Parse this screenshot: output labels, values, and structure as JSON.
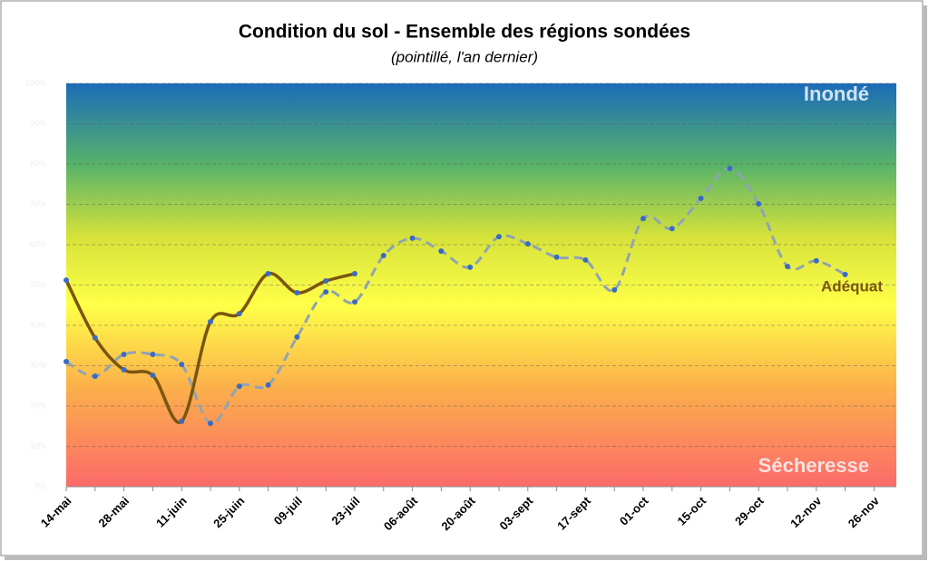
{
  "chart_data": {
    "type": "line",
    "title": "Condition du sol - Ensemble des régions sondées",
    "subtitle": "(pointillé, l'an dernier)",
    "annotations": {
      "top": "Inondé",
      "bottom": "Sécheresse",
      "current": "Adéquat"
    },
    "categories": [
      "14-mai",
      null,
      "28-mai",
      null,
      "11-juin",
      null,
      "25-juin",
      null,
      "09-juil",
      null,
      "23-juil",
      null,
      "06-août",
      null,
      "20-août",
      null,
      "03-sept",
      null,
      "17-sept",
      null,
      "01-oct",
      null,
      "15-oct",
      null,
      "29-oct",
      null,
      "12-nov",
      null,
      "26-nov"
    ],
    "series": [
      {
        "name": "Adéquat",
        "color": "#7a5510",
        "dash": false,
        "values": [
          51.2,
          36.9,
          29.0,
          27.6,
          16.2,
          40.9,
          42.9,
          52.8,
          48.1,
          51.0,
          52.8,
          null,
          null,
          null,
          null,
          null,
          null,
          null,
          null,
          null,
          null,
          null,
          null,
          null,
          null,
          null,
          null,
          null,
          null
        ]
      },
      {
        "name": "l'an dernier",
        "color": "#8fa3b3",
        "dash": true,
        "values": [
          31.0,
          27.4,
          32.8,
          32.8,
          30.3,
          15.7,
          24.9,
          25.2,
          37.1,
          48.3,
          45.8,
          57.3,
          61.6,
          58.4,
          54.4,
          62.0,
          60.2,
          56.9,
          56.2,
          48.8,
          66.5,
          64.0,
          71.5,
          78.9,
          70.1,
          54.6,
          56.0,
          52.6,
          null
        ]
      }
    ],
    "marker_color": "#3a6bc4",
    "ylim": [
      0,
      100
    ],
    "yticks": [
      {
        "value": 0,
        "label": "0%"
      },
      {
        "value": 10,
        "label": "10%"
      },
      {
        "value": 20,
        "label": "20%"
      },
      {
        "value": 30,
        "label": "30%"
      },
      {
        "value": 40,
        "label": "40%"
      },
      {
        "value": 50,
        "label": "50%"
      },
      {
        "value": 60,
        "label": "60%"
      },
      {
        "value": 70,
        "label": "70%"
      },
      {
        "value": 80,
        "label": "80%"
      },
      {
        "value": 90,
        "label": "90%"
      },
      {
        "value": 100,
        "label": "100%"
      }
    ],
    "grid": true
  }
}
